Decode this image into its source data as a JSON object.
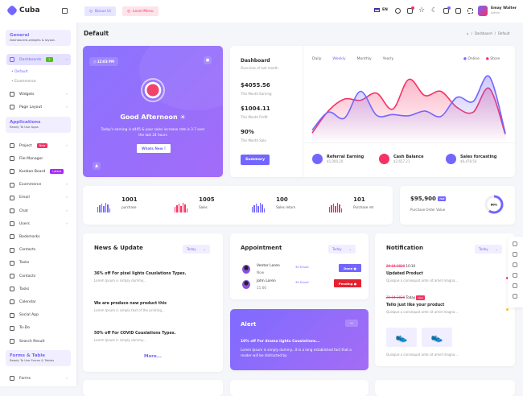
{
  "brand": "Cuba",
  "sidebar": {
    "sections": [
      {
        "title": "General",
        "subtitle": "Dashboards,widgets & layout."
      },
      {
        "title": "Applications",
        "subtitle": "Ready To Use Apps"
      },
      {
        "title": "Forms & Table",
        "subtitle": "Ready To Use Forms & Tables"
      }
    ],
    "dashboards": {
      "label": "Dashboards",
      "badge": "2"
    },
    "subitems": [
      "Default",
      "Ecommerce"
    ],
    "items_general": [
      {
        "label": "Widgets",
        "chevron": true
      },
      {
        "label": "Page Layout",
        "chevron": true
      }
    ],
    "items_apps": [
      {
        "label": "Project",
        "chevron": true,
        "badge": "New",
        "badge_color": "#f73164"
      },
      {
        "label": "File Manager"
      },
      {
        "label": "Kanban Board",
        "badge": "Latest",
        "badge_color": "#a927f9"
      },
      {
        "label": "Ecommerce",
        "chevron": true
      },
      {
        "label": "Email",
        "chevron": true
      },
      {
        "label": "Chat",
        "chevron": true
      },
      {
        "label": "Users",
        "chevron": true
      },
      {
        "label": "Bookmarks"
      },
      {
        "label": "Contacts"
      },
      {
        "label": "Tasks"
      },
      {
        "label": "Contacts"
      },
      {
        "label": "Tasks"
      },
      {
        "label": "Calendar"
      },
      {
        "label": "Social App"
      },
      {
        "label": "To-Do"
      },
      {
        "label": "Search Result"
      }
    ],
    "items_forms": [
      {
        "label": "Forms",
        "chevron": true
      }
    ]
  },
  "header": {
    "bonus": "Bonus Ui",
    "level": "Level Menu",
    "lang": "EN",
    "user": {
      "name": "Emay Walter",
      "role": "Admin"
    }
  },
  "page": {
    "title": "Default",
    "breadcrumb": [
      "Dashboard",
      "Default"
    ]
  },
  "greeting": {
    "time": "12:03 PM",
    "title": "Good Afternoon",
    "text": "Today's earning is $405 & your sales increase rate is 3.7 over the last 24 hours",
    "button": "Whats New !"
  },
  "dashboard": {
    "title": "Dashboard",
    "subtitle": "Overview of last month",
    "stats": [
      {
        "value": "$4055.56",
        "label": "This Month Earning"
      },
      {
        "value": "$1004.11",
        "label": "This Month Profit"
      },
      {
        "value": "90%",
        "label": "This Month Sale"
      }
    ],
    "button": "Summary",
    "tabs": [
      "Daily",
      "Weekly",
      "Monthly",
      "Yearly"
    ],
    "active_tab": "Weekly",
    "footer": [
      {
        "label": "Referral Earning",
        "value": "$5,000.20",
        "color": "#7366ff"
      },
      {
        "label": "Cash Balance",
        "value": "$2,657.21",
        "color": "#f73164"
      },
      {
        "label": "Sales forcasting",
        "value": "$9,478.50",
        "color": "#7366ff"
      }
    ]
  },
  "chart_data": {
    "type": "area",
    "legend_position": "top-right",
    "grid": false,
    "series": [
      {
        "name": "Online",
        "color": "#7366ff",
        "values": [
          10,
          40,
          30,
          75,
          35,
          36,
          34,
          42,
          33,
          65,
          58,
          100,
          5
        ]
      },
      {
        "name": "Store",
        "color": "#f73164",
        "values": [
          5,
          42,
          62,
          60,
          72,
          45,
          95,
          68,
          75,
          48,
          40,
          80,
          3
        ]
      }
    ]
  },
  "stats": [
    {
      "value": "1001",
      "label": "purchase",
      "color": "#7366ff"
    },
    {
      "value": "1005",
      "label": "Sales",
      "color": "#f73164"
    },
    {
      "value": "100",
      "label": "Sales return",
      "color": "#7366ff"
    },
    {
      "value": "101",
      "label": "Purchase ret",
      "color": "#f73164"
    }
  ],
  "purchase_order": {
    "value": "$95,900",
    "badge": "Hot",
    "label": "Purchase Order Value",
    "percent": "60%",
    "fraction": 0.6
  },
  "news": {
    "title": "News & Update",
    "filter": "Today",
    "items": [
      {
        "title": "36% off For pixel lights Couslations Types.",
        "text": "Lorem Ipsum is simply dummy..."
      },
      {
        "title": "We are produce new product this",
        "text": "Lorem Ipsum is simply text of the printing..."
      },
      {
        "title": "50% off For COVID Couslations Types.",
        "text": "Lorem Ipsum is simply dummy..."
      }
    ],
    "more": "More..."
  },
  "appointment": {
    "title": "Appointment",
    "filter": "Today",
    "items": [
      {
        "name": "Venter Loren",
        "time": "Now",
        "email": "30 Email",
        "status": "Done",
        "color": "#7366ff"
      },
      {
        "name": "John Loren",
        "time": "11:00",
        "email": "30 Email",
        "status": "Pending",
        "color": "#e5212e"
      }
    ]
  },
  "alert": {
    "title": "Alert",
    "headline": "10% off For drama lights Couslations...",
    "text": "Lorem Ipsum is simply dummy...It is a long established fact that a reader will be distracted by"
  },
  "notification": {
    "title": "Notification",
    "filter": "Today",
    "items": [
      {
        "date": "20-04-2020",
        "time": "10:10",
        "title": "Updated Product",
        "text": "Quisque a consequat ante sit amet magna...",
        "dot": "#f73164"
      },
      {
        "date": "20-04-2020",
        "time": "Today",
        "badge": "New",
        "title": "Tello just like your product",
        "text": "Quisque a consequat ante sit amet magna...",
        "dot": "#ffc107"
      }
    ],
    "footer_text": "Quisque a consequat ante sit amet magna..."
  }
}
